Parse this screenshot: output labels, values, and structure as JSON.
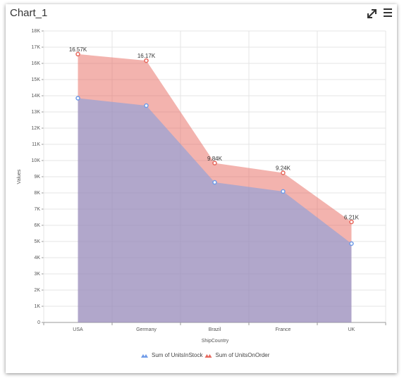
{
  "chart_data": {
    "type": "area",
    "title": "Chart_1",
    "x_label": "ShipCountry",
    "y_label": "Values",
    "categories": [
      "USA",
      "Germany",
      "Brazil",
      "France",
      "UK"
    ],
    "series": [
      {
        "name": "Sum of UnitsInStock",
        "color": "#6f9be8",
        "values": [
          13850,
          13390,
          8650,
          8090,
          4870
        ]
      },
      {
        "name": "Sum of UnitsOnOrder",
        "color": "#e7685d",
        "values": [
          16570,
          16170,
          9840,
          9240,
          6210
        ],
        "value_labels": [
          "16.57K",
          "16.17K",
          "9.84K",
          "9.24K",
          "6.21K"
        ]
      }
    ],
    "ylim": [
      0,
      18000
    ],
    "yticks": [
      0,
      {
        "value": 1000,
        "label": "1K"
      },
      {
        "value": 2000,
        "label": "2K"
      },
      {
        "value": 3000,
        "label": "3K"
      },
      {
        "value": 4000,
        "label": "4K"
      },
      {
        "value": 5000,
        "label": "5K"
      },
      {
        "value": 6000,
        "label": "6K"
      },
      {
        "value": 7000,
        "label": "7K"
      },
      {
        "value": 8000,
        "label": "8K"
      },
      {
        "value": 9000,
        "label": "9K"
      },
      {
        "value": 10000,
        "label": "10K"
      },
      {
        "value": 11000,
        "label": "11K"
      },
      {
        "value": 12000,
        "label": "12K"
      },
      {
        "value": 13000,
        "label": "13K"
      },
      {
        "value": 14000,
        "label": "14K"
      },
      {
        "value": 15000,
        "label": "15K"
      },
      {
        "value": 16000,
        "label": "16K"
      },
      {
        "value": 17000,
        "label": "17K"
      },
      {
        "value": 18000,
        "label": "18K"
      }
    ],
    "grid": true,
    "legend": "bottom"
  }
}
